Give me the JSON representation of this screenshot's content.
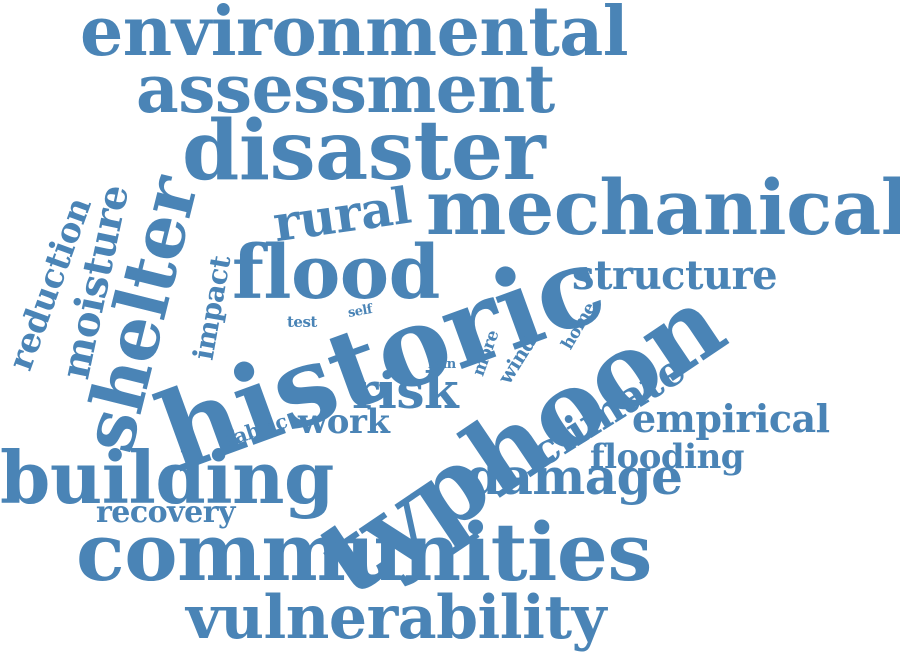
{
  "word_color": "#4a84b6",
  "background_color": "#ffffff",
  "words": {
    "environmental": "environmental",
    "assessment": "assessment",
    "disaster": "disaster",
    "mechanical": "mechanical",
    "shelter": "shelter",
    "moisture": "moisture",
    "reduction": "reduction",
    "rural": "rural",
    "flood": "flood",
    "impact": "impact",
    "structure": "structure",
    "historic": "historic",
    "typhoon": "typhoon",
    "test": "test",
    "self": "self",
    "home": "home",
    "more": "more",
    "rain": "rain",
    "wind": "wind",
    "risk": "risk",
    "climate": "climate",
    "empirical": "empirical",
    "work": "work",
    "fabric": "fabric",
    "flooding": "flooding",
    "building": "building",
    "damage": "damage",
    "recovery": "recovery",
    "communities": "communities",
    "vulnerability": "vulnerability"
  }
}
